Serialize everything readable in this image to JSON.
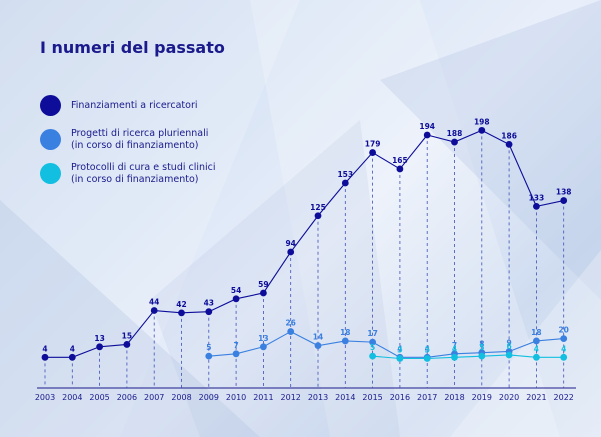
{
  "title": "I numeri del passato",
  "legend": [
    {
      "label": "Finanziamenti a ricercatori",
      "color": "#0d0d99"
    },
    {
      "label": "Progetti di ricerca pluriennali\n(in corso di finanziamento)",
      "color": "#3a80e0"
    },
    {
      "label": "Protocolli di cura e studi clinici\n(in corso di finanziamento)",
      "color": "#12bfe0"
    }
  ],
  "chart_data": {
    "type": "line",
    "title": "I numeri del passato",
    "xlabel": "",
    "ylabel": "",
    "categories": [
      "2003",
      "2004",
      "2005",
      "2006",
      "2007",
      "2008",
      "2009",
      "2010",
      "2011",
      "2012",
      "2013",
      "2014",
      "2015",
      "2016",
      "2017",
      "2018",
      "2019",
      "2020",
      "2021",
      "2022"
    ],
    "series": [
      {
        "name": "Finanziamenti a ricercatori",
        "color": "#0d0d99",
        "values": [
          4,
          4,
          13,
          15,
          44,
          42,
          43,
          54,
          59,
          94,
          125,
          153,
          179,
          165,
          194,
          188,
          198,
          186,
          133,
          138
        ]
      },
      {
        "name": "Progetti di ricerca pluriennali (in corso di finanziamento)",
        "color": "#3a80e0",
        "values": [
          null,
          null,
          null,
          null,
          null,
          null,
          5,
          7,
          13,
          26,
          14,
          18,
          17,
          4,
          4,
          7,
          8,
          9,
          18,
          20
        ]
      },
      {
        "name": "Protocolli di cura e studi clinici (in corso di finanziamento)",
        "color": "#12bfe0",
        "values": [
          null,
          null,
          null,
          null,
          null,
          null,
          null,
          null,
          null,
          null,
          null,
          null,
          5,
          3,
          3,
          4,
          5,
          6,
          4,
          4
        ]
      }
    ],
    "ylim": [
      0,
      200
    ],
    "grid": "vertical-dashed",
    "legend_position": "left"
  }
}
